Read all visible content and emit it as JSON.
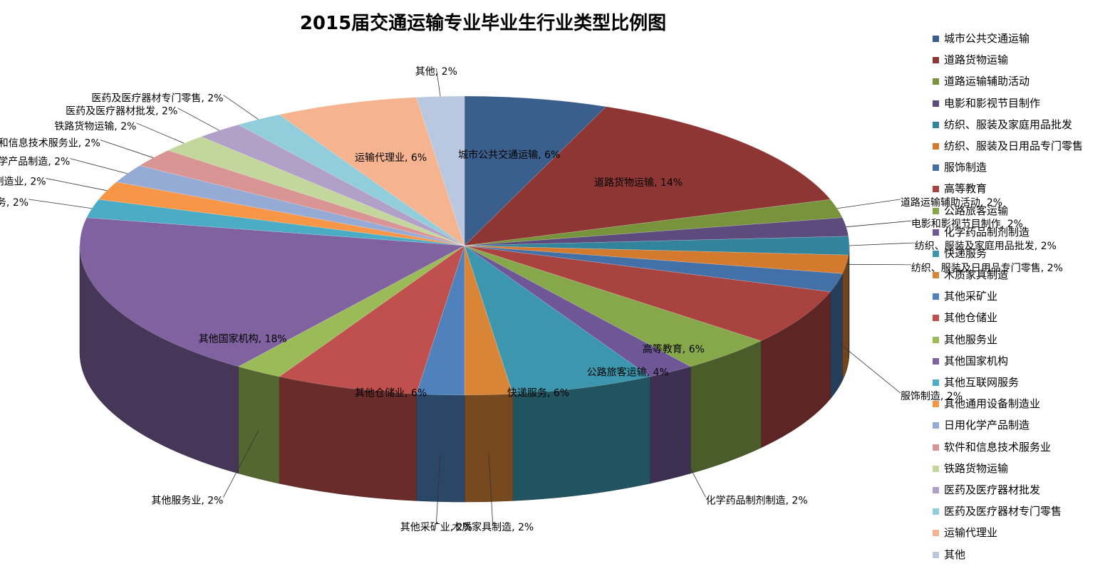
{
  "chart_data": {
    "type": "pie",
    "title": "2015届交通运输专业毕业生行业类型比例图",
    "legend_position": "right",
    "slices": [
      {
        "label": "城市公共交通运输",
        "value": 6,
        "display": "6%",
        "color": "#3A5F8C"
      },
      {
        "label": "道路货物运输",
        "value": 14,
        "display": "14%",
        "color": "#8E3634"
      },
      {
        "label": "道路运输辅助活动",
        "value": 2,
        "display": "2%",
        "color": "#77933C"
      },
      {
        "label": "电影和影视节目制作",
        "value": 2,
        "display": "2%",
        "color": "#5E4B7E"
      },
      {
        "label": "纺织、服装及家庭用品批发",
        "value": 2,
        "display": "2%",
        "color": "#31849B"
      },
      {
        "label": "纺织、服装及日用品专门零售",
        "value": 2,
        "display": "2%",
        "color": "#D47A2E"
      },
      {
        "label": "服饰制造",
        "value": 2,
        "display": "2%",
        "color": "#4470A8"
      },
      {
        "label": "高等教育",
        "value": 6,
        "display": "6%",
        "color": "#A94340"
      },
      {
        "label": "公路旅客运输",
        "value": 4,
        "display": "4%",
        "color": "#86A84A"
      },
      {
        "label": "化学药品制剂制造",
        "value": 2,
        "display": "2%",
        "color": "#6F5797"
      },
      {
        "label": "快递服务",
        "value": 6,
        "display": "6%",
        "color": "#3C96AE"
      },
      {
        "label": "木质家具制造",
        "value": 2,
        "display": "2%",
        "color": "#D98537"
      },
      {
        "label": "其他采矿业",
        "value": 2,
        "display": "2%",
        "color": "#4F81BD"
      },
      {
        "label": "其他仓储业",
        "value": 6,
        "display": "6%",
        "color": "#C0504D"
      },
      {
        "label": "其他服务业",
        "value": 2,
        "display": "2%",
        "color": "#9BBB59"
      },
      {
        "label": "其他国家机构",
        "value": 18,
        "display": "18%",
        "color": "#7F629F"
      },
      {
        "label": "其他互联网服务",
        "value": 2,
        "display": "2%",
        "color": "#4BACC6"
      },
      {
        "label": "其他通用设备制造业",
        "value": 2,
        "display": "2%",
        "color": "#F79646"
      },
      {
        "label": "日用化学产品制造",
        "value": 2,
        "display": "2%",
        "color": "#95ABD6"
      },
      {
        "label": "软件和信息技术服务业",
        "value": 2,
        "display": "2%",
        "color": "#D99594"
      },
      {
        "label": "铁路货物运输",
        "value": 2,
        "display": "2%",
        "color": "#C3D69B"
      },
      {
        "label": "医药及医疗器材批发",
        "value": 2,
        "display": "2%",
        "color": "#B1A0C7"
      },
      {
        "label": "医药及医疗器材专门零售",
        "value": 2,
        "display": "2%",
        "color": "#92CDDC"
      },
      {
        "label": "运输代理业",
        "value": 6,
        "display": "6%",
        "color": "#F5B48F"
      },
      {
        "label": "其他",
        "value": 2,
        "display": "2%",
        "color": "#B9C8E0"
      }
    ]
  }
}
